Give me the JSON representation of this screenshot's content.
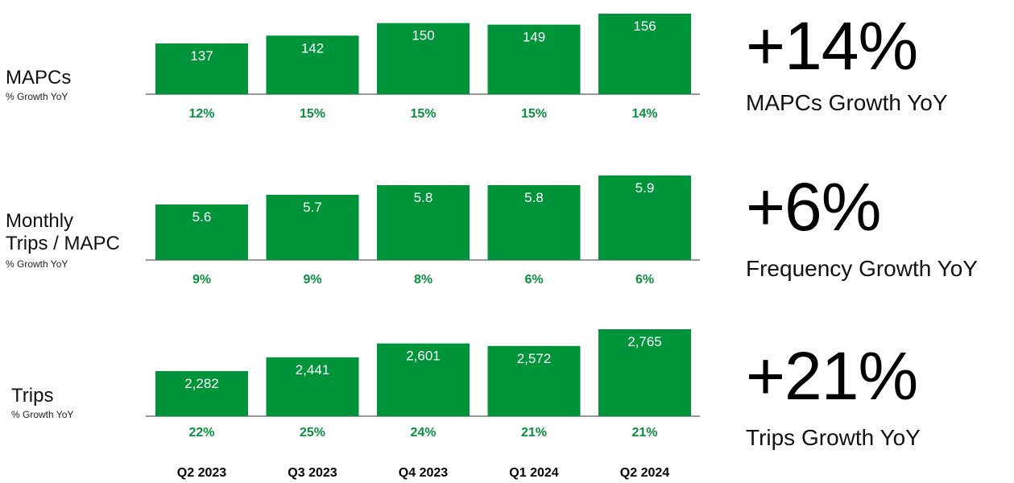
{
  "colors": {
    "bar": "#00943a",
    "growth_text": "#0a8f3e",
    "axis": "#333333"
  },
  "rows": [
    {
      "title_lines": [
        "MAPCs"
      ],
      "subtitle": "% Growth YoY"
    },
    {
      "title_lines": [
        "Monthly",
        "Trips / MAPC"
      ],
      "subtitle": "% Growth YoY"
    },
    {
      "title_lines": [
        "Trips"
      ],
      "subtitle": "% Growth YoY"
    }
  ],
  "callouts": [
    {
      "value": "+14%",
      "label": "MAPCs Growth YoY"
    },
    {
      "value": "+6%",
      "label": "Frequency Growth YoY"
    },
    {
      "value": "+21%",
      "label": "Trips Growth YoY"
    }
  ],
  "chart_data": [
    {
      "type": "bar",
      "categories": [
        "Q2 2023",
        "Q3 2023",
        "Q4 2023",
        "Q1 2024",
        "Q2 2024"
      ],
      "values": [
        137,
        142,
        150,
        149,
        156
      ],
      "value_labels": [
        "137",
        "142",
        "150",
        "149",
        "156"
      ],
      "growth_labels": [
        "12%",
        "15%",
        "15%",
        "15%",
        "14%"
      ]
    },
    {
      "type": "bar",
      "categories": [
        "Q2 2023",
        "Q3 2023",
        "Q4 2023",
        "Q1 2024",
        "Q2 2024"
      ],
      "values": [
        5.6,
        5.7,
        5.8,
        5.8,
        5.9
      ],
      "value_labels": [
        "5.6",
        "5.7",
        "5.8",
        "5.8",
        "5.9"
      ],
      "growth_labels": [
        "9%",
        "9%",
        "8%",
        "6%",
        "6%"
      ]
    },
    {
      "type": "bar",
      "categories": [
        "Q2 2023",
        "Q3 2023",
        "Q4 2023",
        "Q1 2024",
        "Q2 2024"
      ],
      "values": [
        2282,
        2441,
        2601,
        2572,
        2765
      ],
      "value_labels": [
        "2,282",
        "2,441",
        "2,601",
        "2,572",
        "2,765"
      ],
      "growth_labels": [
        "22%",
        "25%",
        "24%",
        "21%",
        "21%"
      ]
    }
  ]
}
